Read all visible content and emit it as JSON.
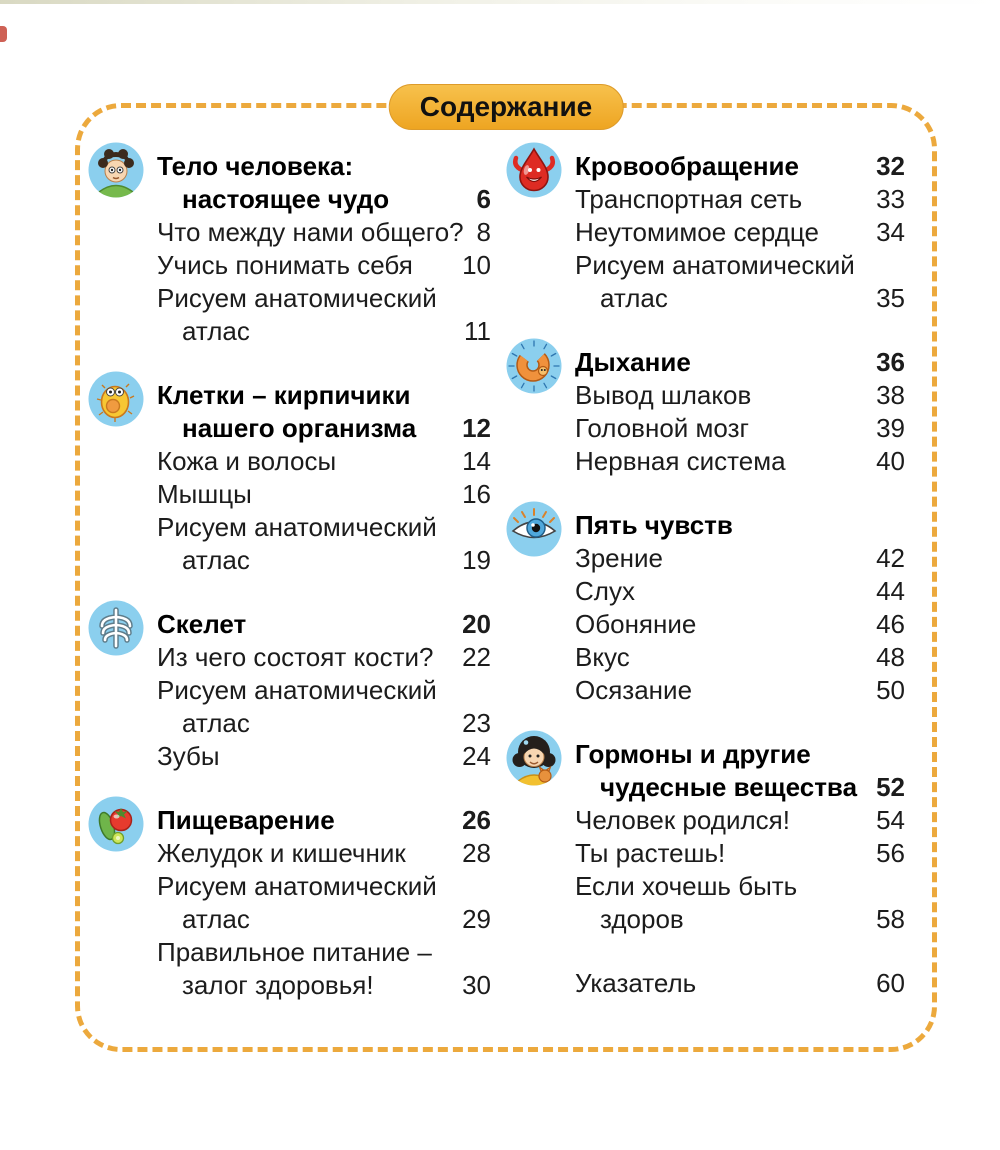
{
  "title": "Содержание",
  "colors": {
    "frame_border": "#ECA93D",
    "pill_top": "#F7C14C",
    "pill_bottom": "#EEA522",
    "icon_circle": "#8BCFEE",
    "text": "#1C1C1C",
    "heading_text": "#000000",
    "page_bg": "#FFFFFF"
  },
  "columns": [
    {
      "sections": [
        {
          "icon": "boy-face-icon",
          "heading": {
            "lines": [
              "Тело человека:",
              "настоящее чудо"
            ],
            "page": "6"
          },
          "entries": [
            {
              "lines": [
                "Что между нами общего?"
              ],
              "page": "8"
            },
            {
              "lines": [
                "Учись понимать себя"
              ],
              "page": "10"
            },
            {
              "lines": [
                "Рисуем анатомический",
                "атлас"
              ],
              "page": "11"
            }
          ]
        },
        {
          "icon": "cell-icon",
          "heading": {
            "lines": [
              "Клетки – кирпичики",
              "нашего организма"
            ],
            "page": "12"
          },
          "entries": [
            {
              "lines": [
                "Кожа и волосы"
              ],
              "page": "14"
            },
            {
              "lines": [
                "Мышцы"
              ],
              "page": "16"
            },
            {
              "lines": [
                "Рисуем анатомический",
                "атлас"
              ],
              "page": "19"
            }
          ]
        },
        {
          "icon": "skeleton-icon",
          "heading": {
            "lines": [
              "Скелет"
            ],
            "page": "20"
          },
          "entries": [
            {
              "lines": [
                "Из чего состоят кости?"
              ],
              "page": "22"
            },
            {
              "lines": [
                "Рисуем анатомический",
                "атлас"
              ],
              "page": "23"
            },
            {
              "lines": [
                "Зубы"
              ],
              "page": "24"
            }
          ]
        },
        {
          "icon": "vegetables-icon",
          "heading": {
            "lines": [
              "Пищеварение"
            ],
            "page": "26"
          },
          "entries": [
            {
              "lines": [
                "Желудок и кишечник"
              ],
              "page": "28"
            },
            {
              "lines": [
                "Рисуем анатомический",
                "атлас"
              ],
              "page": "29"
            },
            {
              "lines": [
                "Правильное питание –",
                "залог здоровья!"
              ],
              "page": "30"
            }
          ]
        }
      ]
    },
    {
      "sections": [
        {
          "icon": "blood-drop-icon",
          "heading": {
            "lines": [
              "Кровообращение"
            ],
            "page": "32"
          },
          "entries": [
            {
              "lines": [
                "Транспортная сеть"
              ],
              "page": "33"
            },
            {
              "lines": [
                "Неутомимое сердце"
              ],
              "page": "34"
            },
            {
              "lines": [
                "Рисуем анатомический",
                "атлас"
              ],
              "page": "35"
            }
          ]
        },
        {
          "icon": "breath-creature-icon",
          "heading": {
            "lines": [
              "Дыхание"
            ],
            "page": "36"
          },
          "entries": [
            {
              "lines": [
                "Вывод шлаков"
              ],
              "page": "38"
            },
            {
              "lines": [
                "Головной мозг"
              ],
              "page": "39"
            },
            {
              "lines": [
                "Нервная система"
              ],
              "page": "40"
            }
          ]
        },
        {
          "icon": "eye-icon",
          "heading": {
            "lines": [
              "Пять чувств"
            ],
            "page": ""
          },
          "entries": [
            {
              "lines": [
                "Зрение"
              ],
              "page": "42"
            },
            {
              "lines": [
                "Слух"
              ],
              "page": "44"
            },
            {
              "lines": [
                "Обоняние"
              ],
              "page": "46"
            },
            {
              "lines": [
                "Вкус"
              ],
              "page": "48"
            },
            {
              "lines": [
                "Осязание"
              ],
              "page": "50"
            }
          ]
        },
        {
          "icon": "girl-face-icon",
          "heading": {
            "lines": [
              "Гормоны и другие",
              "чудесные вещества"
            ],
            "page": "52"
          },
          "entries": [
            {
              "lines": [
                "Человек родился!"
              ],
              "page": "54"
            },
            {
              "lines": [
                "Ты растешь!"
              ],
              "page": "56"
            },
            {
              "lines": [
                "Если хочешь быть",
                "здоров"
              ],
              "page": "58"
            }
          ]
        },
        {
          "entries": [
            {
              "lines": [
                "Указатель"
              ],
              "page": "60"
            }
          ]
        }
      ]
    }
  ]
}
